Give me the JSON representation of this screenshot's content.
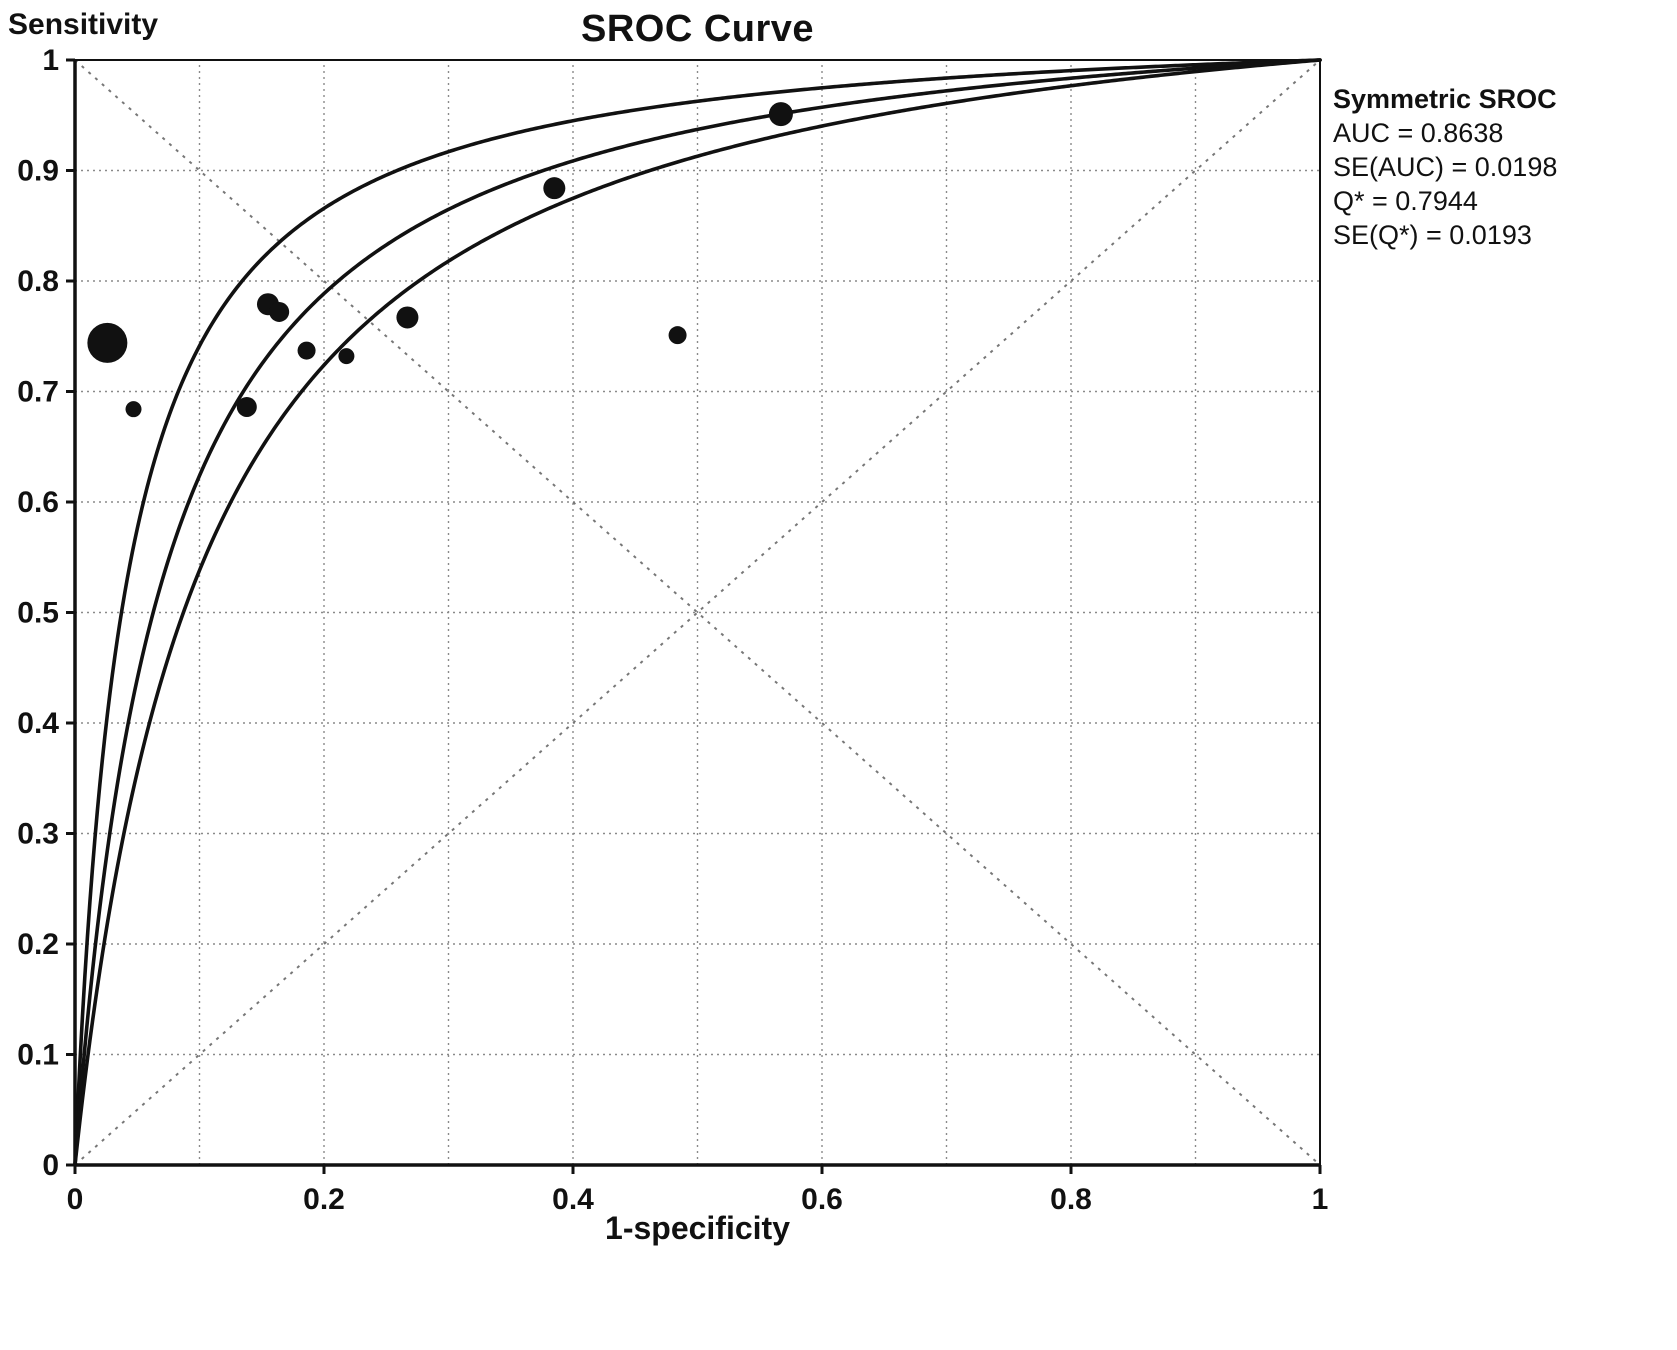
{
  "chart_data": {
    "type": "scatter",
    "title": "SROC Curve",
    "xlabel": "1-specificity",
    "ylabel": "Sensitivity",
    "xlim": [
      0,
      1
    ],
    "ylim": [
      0,
      1
    ],
    "x_ticks": [
      0,
      0.2,
      0.4,
      0.6,
      0.8,
      1
    ],
    "y_ticks": [
      0,
      0.1,
      0.2,
      0.3,
      0.4,
      0.5,
      0.6,
      0.7,
      0.8,
      0.9,
      1
    ],
    "grid_step": 0.1,
    "grid_style": "dotted",
    "diagonals": true,
    "legend": {
      "title": "Symmetric SROC",
      "lines": [
        "AUC = 0.8638",
        "SE(AUC) = 0.0198",
        "Q* = 0.7944",
        "SE(Q*) = 0.0193"
      ]
    },
    "stats": {
      "auc": 0.8638,
      "se_auc": 0.0198,
      "q_star": 0.7944,
      "se_q_star": 0.0193
    },
    "sroc_model": {
      "kind": "symmetric",
      "a_mid": 2.703,
      "a_upper": 3.25,
      "a_lower": 2.35
    },
    "study_points": [
      {
        "x": 0.026,
        "y": 0.744,
        "r": 20
      },
      {
        "x": 0.047,
        "y": 0.684,
        "r": 8
      },
      {
        "x": 0.138,
        "y": 0.686,
        "r": 10
      },
      {
        "x": 0.155,
        "y": 0.779,
        "r": 11
      },
      {
        "x": 0.164,
        "y": 0.772,
        "r": 10
      },
      {
        "x": 0.186,
        "y": 0.737,
        "r": 9
      },
      {
        "x": 0.218,
        "y": 0.732,
        "r": 8
      },
      {
        "x": 0.267,
        "y": 0.767,
        "r": 11
      },
      {
        "x": 0.385,
        "y": 0.884,
        "r": 11
      },
      {
        "x": 0.484,
        "y": 0.751,
        "r": 9
      },
      {
        "x": 0.567,
        "y": 0.951,
        "r": 12
      }
    ],
    "colors": {
      "curve": "#111111",
      "point": "#111111",
      "grid": "#8a8a8a",
      "diagonal": "#777777",
      "axis": "#111111",
      "background": "#ffffff"
    }
  }
}
